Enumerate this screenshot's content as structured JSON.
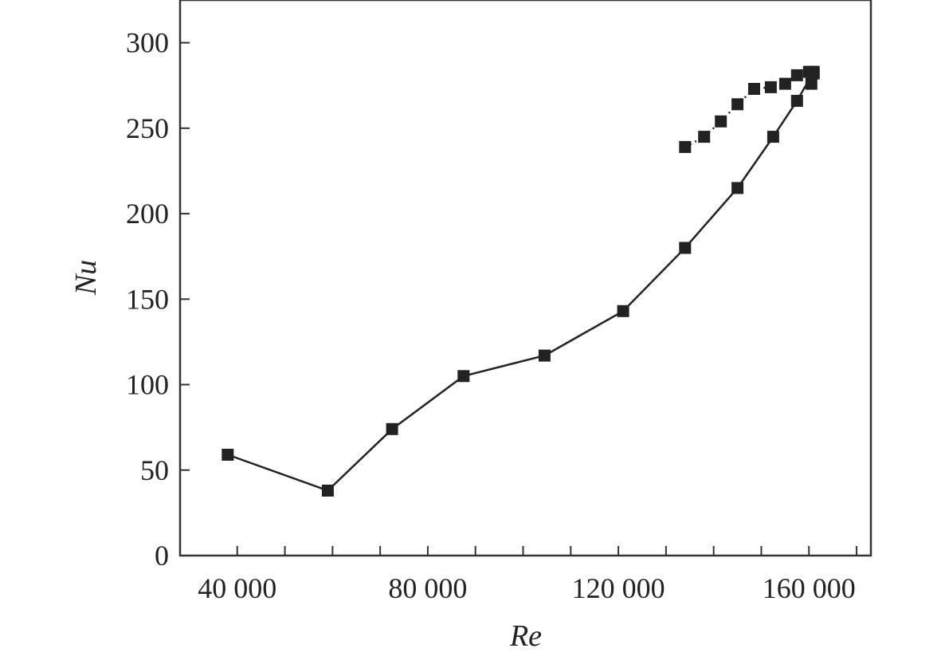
{
  "chart_data": {
    "type": "line",
    "title": "",
    "xlabel": "Re",
    "ylabel": "Nu",
    "xlim": [
      28000,
      173000
    ],
    "ylim": [
      0,
      325
    ],
    "xticks": [
      40000,
      50000,
      60000,
      70000,
      80000,
      90000,
      100000,
      110000,
      120000,
      130000,
      140000,
      150000,
      160000,
      170000
    ],
    "xtick_labels": [
      {
        "value": 40000,
        "label": "40 000"
      },
      {
        "value": 80000,
        "label": "80 000"
      },
      {
        "value": 120000,
        "label": "120 000"
      },
      {
        "value": 160000,
        "label": "160 000"
      }
    ],
    "yticks": [
      0,
      50,
      100,
      150,
      200,
      250,
      300
    ],
    "ytick_labels": [
      {
        "value": 0,
        "label": "0"
      },
      {
        "value": 50,
        "label": "50"
      },
      {
        "value": 100,
        "label": "100"
      },
      {
        "value": 150,
        "label": "150"
      },
      {
        "value": 200,
        "label": "200"
      },
      {
        "value": 250,
        "label": "250"
      },
      {
        "value": 300,
        "label": "300"
      }
    ],
    "grid": false,
    "legend": "none",
    "series": [
      {
        "line_style": "solid",
        "marker": "square",
        "color": "#222222",
        "x": [
          38000,
          59000,
          72500,
          87500,
          104500,
          121000,
          134000,
          145000,
          152500,
          157500,
          161000
        ],
        "y": [
          59,
          38,
          74,
          105,
          117,
          143,
          180,
          215,
          245,
          266,
          283
        ]
      },
      {
        "line_style": "dotted",
        "marker": "square",
        "color": "#222222",
        "x": [
          134000,
          138000,
          141500,
          145000,
          148500,
          152000,
          155000,
          157500,
          160000,
          160500,
          161000
        ],
        "y": [
          239,
          245,
          254,
          264,
          273,
          274,
          276,
          281,
          283,
          276,
          282
        ]
      }
    ]
  }
}
